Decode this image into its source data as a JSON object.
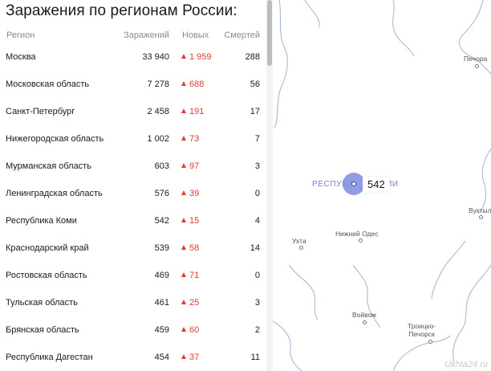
{
  "title": "Заражения по регионам России:",
  "columns": {
    "region": "Регион",
    "cases": "Заражений",
    "new": "Новых",
    "deaths": "Смертей"
  },
  "rows": [
    {
      "region": "Москва",
      "cases": "33 940",
      "new": "1 959",
      "deaths": "288"
    },
    {
      "region": "Московская область",
      "cases": "7 278",
      "new": "688",
      "deaths": "56"
    },
    {
      "region": "Санкт-Петербург",
      "cases": "2 458",
      "new": "191",
      "deaths": "17"
    },
    {
      "region": "Нижегородская область",
      "cases": "1 002",
      "new": "73",
      "deaths": "7"
    },
    {
      "region": "Мурманская область",
      "cases": "603",
      "new": "97",
      "deaths": "3"
    },
    {
      "region": "Ленинградская область",
      "cases": "576",
      "new": "39",
      "deaths": "0"
    },
    {
      "region": "Республика Коми",
      "cases": "542",
      "new": "15",
      "deaths": "4"
    },
    {
      "region": "Краснодарский край",
      "cases": "539",
      "new": "58",
      "deaths": "14"
    },
    {
      "region": "Ростовская область",
      "cases": "469",
      "new": "71",
      "deaths": "0"
    },
    {
      "region": "Тульская область",
      "cases": "461",
      "new": "25",
      "deaths": "3"
    },
    {
      "region": "Брянская область",
      "cases": "459",
      "new": "60",
      "deaths": "2"
    },
    {
      "region": "Республика Дагестан",
      "cases": "454",
      "new": "37",
      "deaths": "11"
    }
  ],
  "map": {
    "region_label_left": "РЕСПУБЛ",
    "region_label_right": "МИ",
    "cluster_count": "542",
    "places": {
      "pechora": "Печора",
      "vuktyl": "Вуктыл",
      "nizhny_odes": "Нижний Одес",
      "ukhta": "Ухта",
      "voyvozh": "Войвож",
      "troitsko_pechorsk_line1": "Троицко-",
      "troitsko_pechorsk_line2": "Печорск"
    },
    "watermark": "Ukhta24.ru"
  },
  "colors": {
    "increase": "#e53935",
    "cluster": "#8592e0",
    "region_label": "#7a7fc4",
    "river": "#a9b9d3"
  },
  "icons": {
    "increase": "up-triangle-icon",
    "place_marker": "city-dot-icon"
  }
}
